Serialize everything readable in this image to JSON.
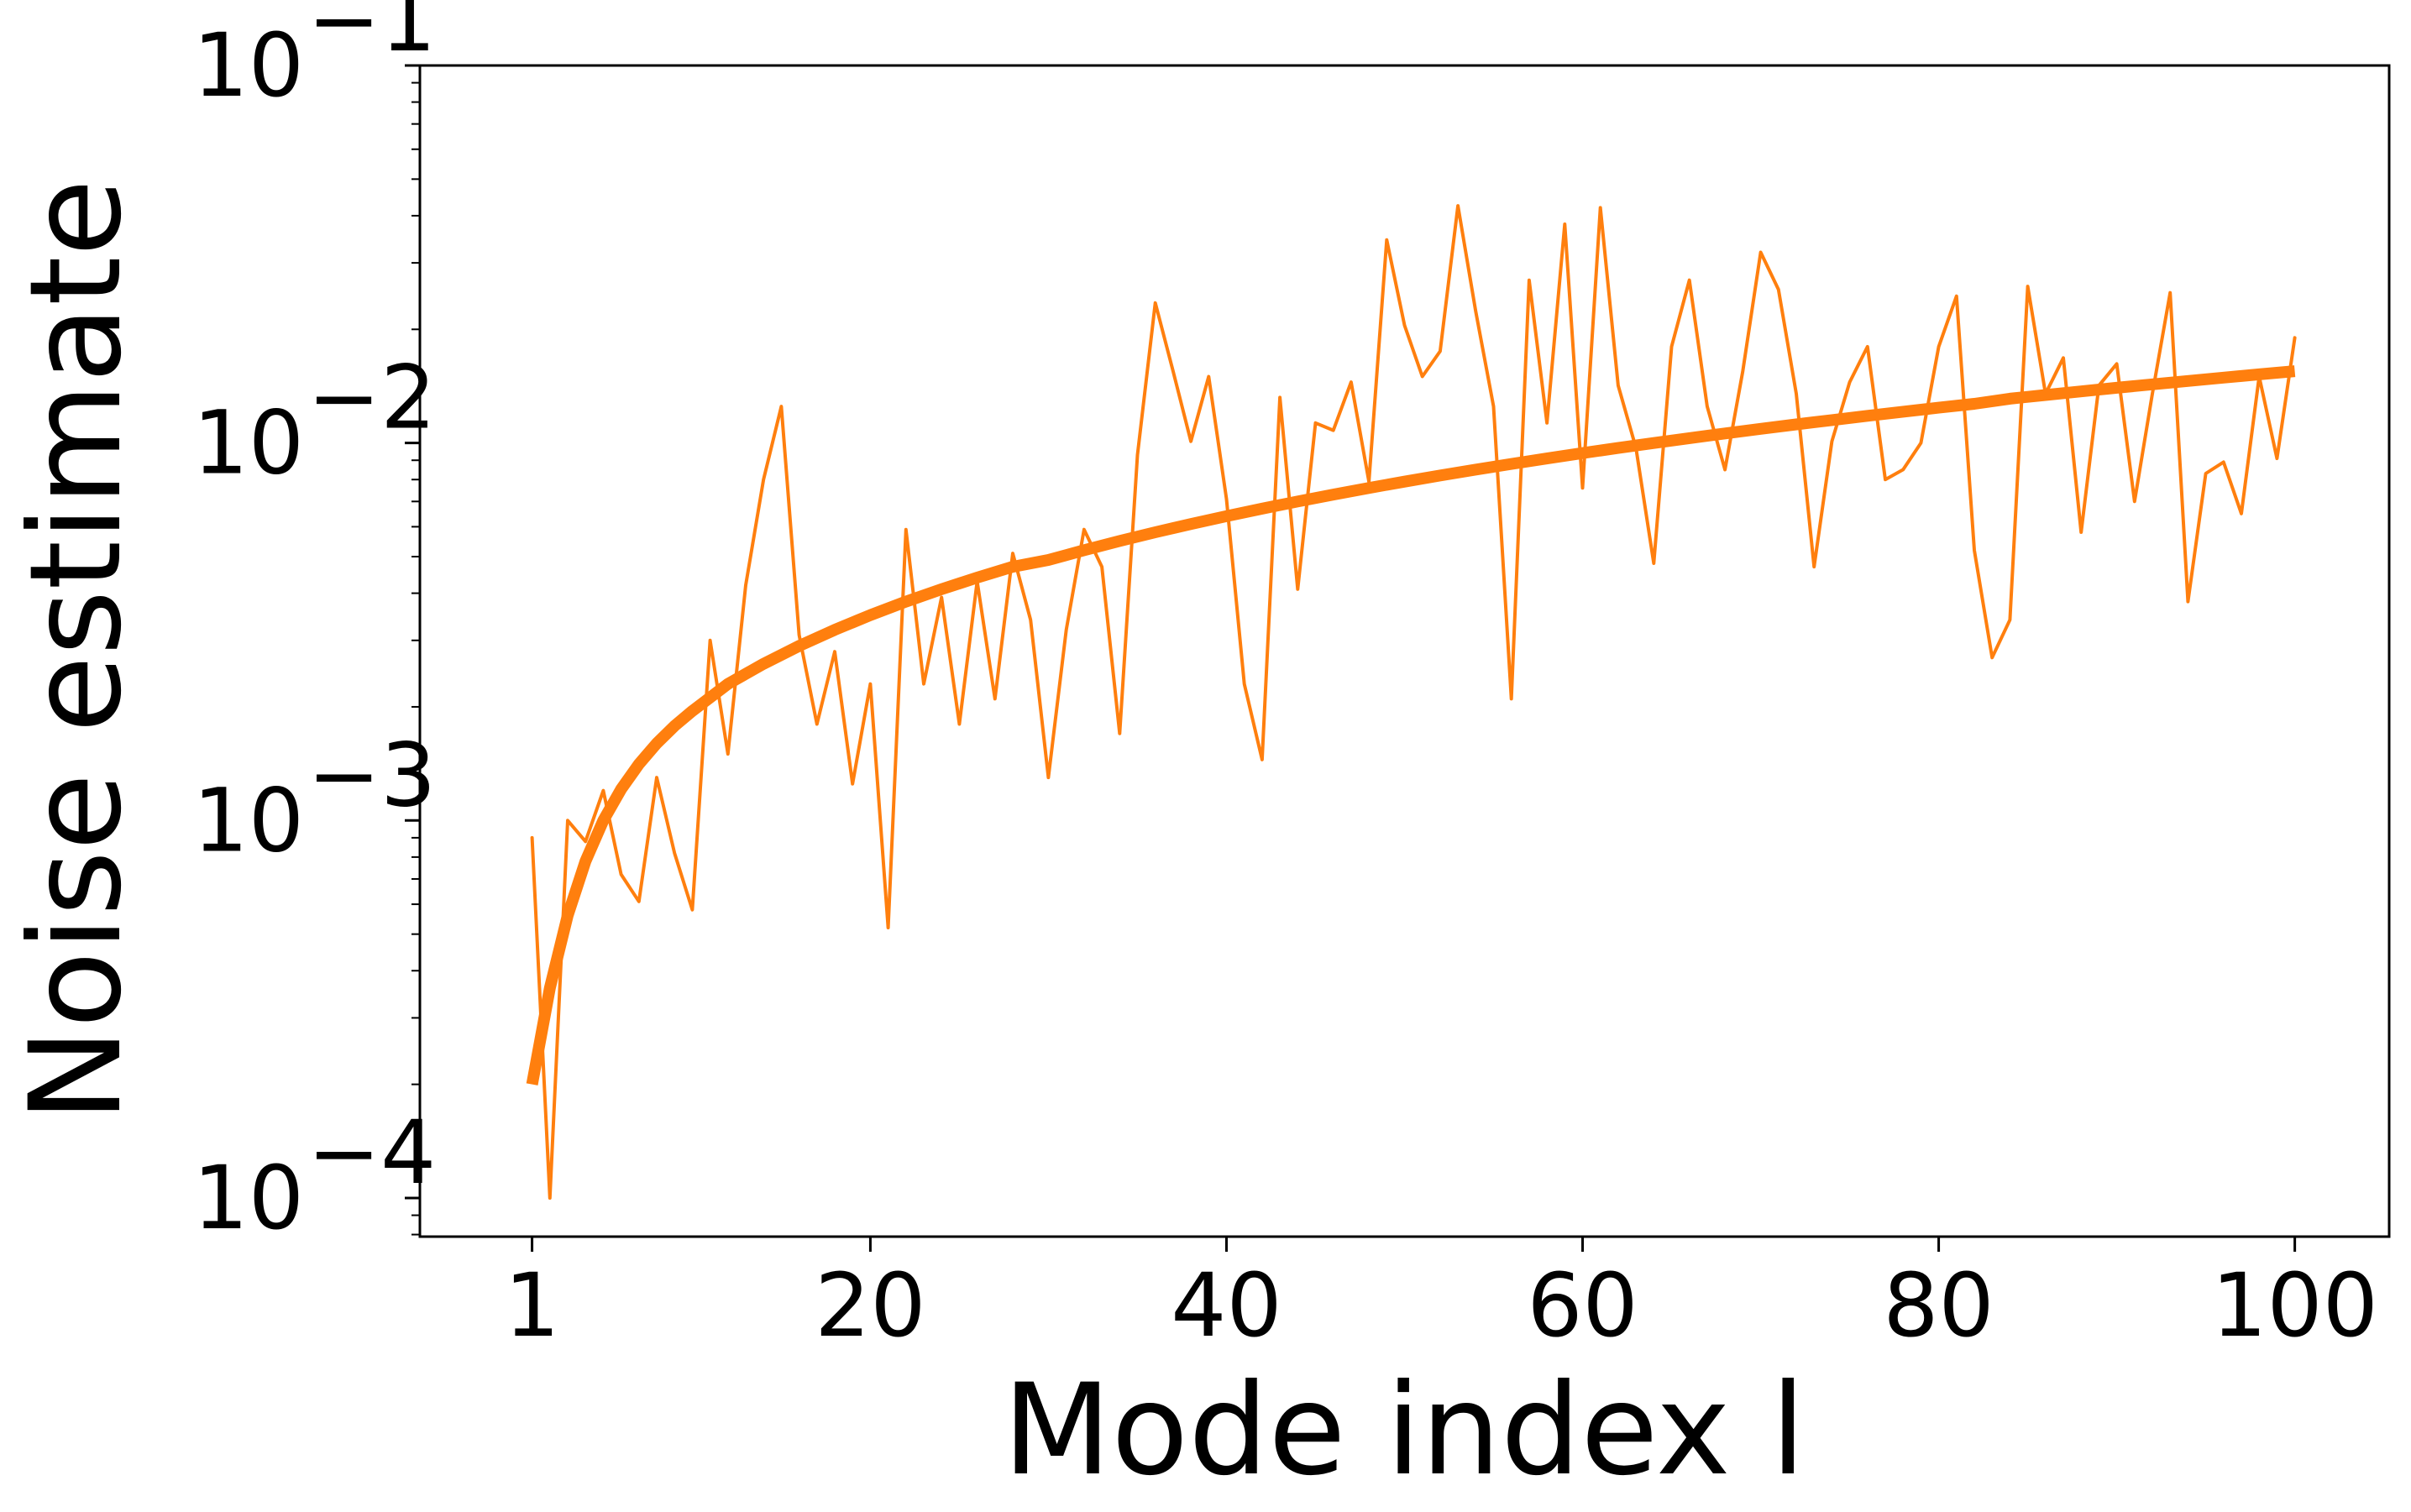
{
  "chart_data": {
    "type": "line",
    "xlabel": "Mode index l",
    "ylabel": "Noise estimate",
    "xlim": [
      -5.3,
      105.3
    ],
    "ylim": [
      7.9e-05,
      0.1
    ],
    "yscale": "log",
    "grid": false,
    "x_ticks": [
      {
        "value": 1,
        "label": "1"
      },
      {
        "value": 20,
        "label": "20"
      },
      {
        "value": 40,
        "label": "40"
      },
      {
        "value": 60,
        "label": "60"
      },
      {
        "value": 80,
        "label": "80"
      },
      {
        "value": 100,
        "label": "100"
      }
    ],
    "y_ticks": [
      {
        "value": 0.0001,
        "base": "10",
        "exp": "−4"
      },
      {
        "value": 0.001,
        "base": "10",
        "exp": "−3"
      },
      {
        "value": 0.01,
        "base": "10",
        "exp": "−2"
      },
      {
        "value": 0.1,
        "base": "10",
        "exp": "−1"
      }
    ],
    "series": [
      {
        "role": "noisy",
        "color": "#ff7f0e",
        "x": [
          1,
          2,
          3,
          4,
          5,
          6,
          7,
          8,
          9,
          10,
          11,
          12,
          13,
          14,
          15,
          16,
          17,
          18,
          19,
          20,
          21,
          22,
          23,
          24,
          25,
          26,
          27,
          28,
          29,
          30,
          31,
          32,
          33,
          34,
          35,
          36,
          37,
          38,
          39,
          40,
          41,
          42,
          43,
          44,
          45,
          46,
          47,
          48,
          49,
          50,
          51,
          52,
          53,
          54,
          55,
          56,
          57,
          58,
          59,
          60,
          61,
          62,
          63,
          64,
          65,
          66,
          67,
          68,
          69,
          70,
          71,
          72,
          73,
          74,
          75,
          76,
          77,
          78,
          79,
          80,
          81,
          82,
          83,
          84,
          85,
          86,
          87,
          88,
          89,
          90,
          91,
          92,
          93,
          94,
          95,
          96,
          97,
          98,
          99,
          100
        ],
        "y": [
          0.0009,
          0.0001,
          0.001,
          0.00088,
          0.0012,
          0.00072,
          0.00061,
          0.0013,
          0.00082,
          0.00058,
          0.003,
          0.0015,
          0.0042,
          0.008,
          0.0125,
          0.0031,
          0.0018,
          0.0028,
          0.00125,
          0.0023,
          0.00052,
          0.0059,
          0.0023,
          0.0039,
          0.0018,
          0.0043,
          0.0021,
          0.0051,
          0.0034,
          0.0013,
          0.0032,
          0.0059,
          0.0047,
          0.0017,
          0.0093,
          0.0235,
          0.0155,
          0.0101,
          0.015,
          0.0071,
          0.0023,
          0.00145,
          0.0132,
          0.0041,
          0.0113,
          0.0108,
          0.0145,
          0.0079,
          0.0345,
          0.0205,
          0.015,
          0.0175,
          0.0425,
          0.0223,
          0.0125,
          0.0021,
          0.027,
          0.0113,
          0.038,
          0.0076,
          0.042,
          0.0142,
          0.0097,
          0.0048,
          0.018,
          0.027,
          0.0125,
          0.0085,
          0.0155,
          0.032,
          0.0255,
          0.0135,
          0.0047,
          0.0101,
          0.0145,
          0.018,
          0.008,
          0.0085,
          0.01,
          0.018,
          0.0245,
          0.0052,
          0.0027,
          0.0034,
          0.026,
          0.0135,
          0.0168,
          0.0058,
          0.0142,
          0.0162,
          0.007,
          0.0135,
          0.025,
          0.0038,
          0.0083,
          0.0089,
          0.0065,
          0.015,
          0.0091,
          0.019
        ]
      },
      {
        "role": "fit",
        "color": "#ff7f0e",
        "x": [
          1,
          2,
          3,
          4,
          5,
          6,
          7,
          8,
          9,
          10,
          12,
          14,
          16,
          18,
          20,
          22,
          24,
          26,
          28,
          30,
          32,
          34,
          36,
          38,
          40,
          42,
          44,
          46,
          48,
          50,
          52,
          54,
          56,
          58,
          60,
          62,
          64,
          66,
          68,
          70,
          72,
          74,
          76,
          78,
          80,
          82,
          84,
          86,
          88,
          90,
          92,
          94,
          96,
          98,
          100
        ],
        "y": [
          0.0002,
          0.00036,
          0.00056,
          0.00078,
          0.001,
          0.00121,
          0.00141,
          0.0016,
          0.00178,
          0.00195,
          0.0023,
          0.0026,
          0.0029,
          0.0032,
          0.0035,
          0.0038,
          0.0041,
          0.0044,
          0.0047,
          0.0049,
          0.0052,
          0.0055,
          0.0058,
          0.0061,
          0.0064,
          0.0067,
          0.007,
          0.0073,
          0.0076,
          0.0079,
          0.0082,
          0.0085,
          0.0088,
          0.0091,
          0.0094,
          0.0097,
          0.01,
          0.0103,
          0.0106,
          0.0109,
          0.0112,
          0.0115,
          0.0118,
          0.0121,
          0.0124,
          0.0127,
          0.0131,
          0.0134,
          0.0137,
          0.014,
          0.0143,
          0.0146,
          0.0149,
          0.0152,
          0.0155
        ]
      }
    ]
  }
}
